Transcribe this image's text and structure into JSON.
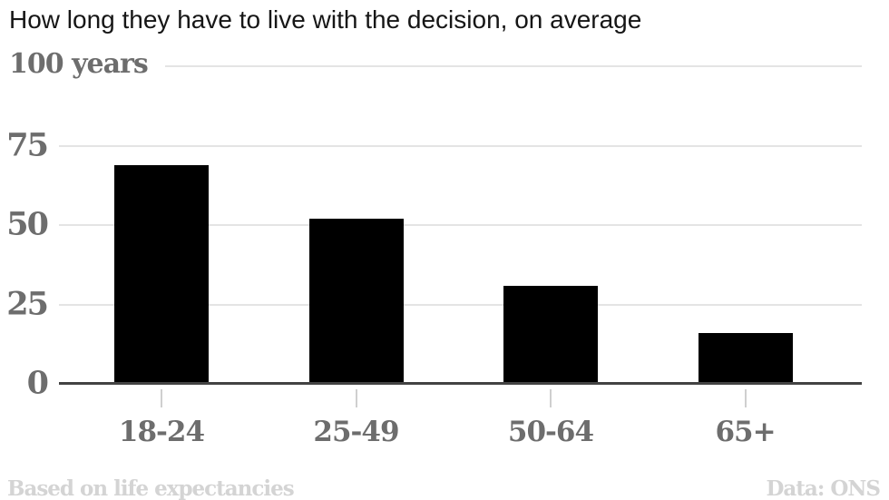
{
  "title": "How long they have to live with the decision, on average",
  "chart_data": {
    "type": "bar",
    "title": "How long they have to live with the decision, on average",
    "unit_label": "100 years",
    "categories": [
      "18-24",
      "25-49",
      "50-64",
      "65+"
    ],
    "values": [
      69,
      52,
      31,
      16
    ],
    "xlabel": "",
    "ylabel": "years",
    "ylim": [
      0,
      100
    ],
    "yticks": [
      0,
      25,
      50,
      75,
      100
    ],
    "grid": "horizontal-only",
    "legend": "none",
    "bar_color": "#000000"
  },
  "footer": {
    "note": "Based on life expectancies",
    "source": "Data: ONS"
  },
  "colors": {
    "bar": "#000000",
    "title_text": "#161616",
    "axis_labels": "#6d6d6d",
    "gridline": "#e4e4e4",
    "axis_line": "#434343",
    "tick_mark": "#cfcfcf",
    "footer_text": "#d4d4d4",
    "background": "#ffffff"
  }
}
